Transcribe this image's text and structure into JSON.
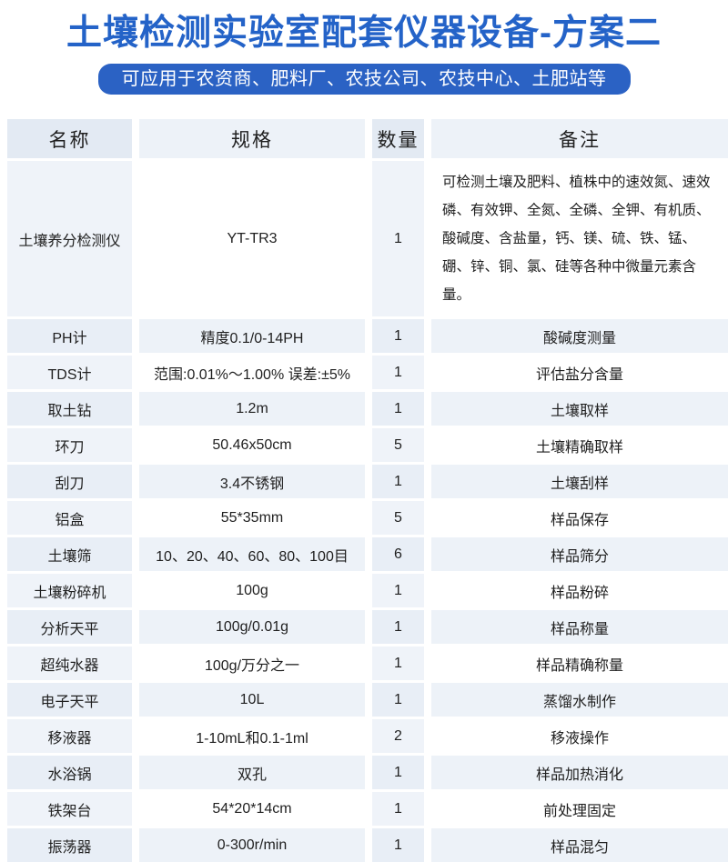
{
  "page": {
    "title": "土壤检测实验室配套仪器设备-方案二",
    "subtitle": "可应用于农资商、肥料厂、农技公司、农技中心、土肥站等"
  },
  "colors": {
    "title_blue": "#2463c8",
    "pill_blue": "#2b62c4",
    "header_tint_dark": "#e3eaf3",
    "header_tint_light": "#edf2f8",
    "row_tint": "#edf2f8",
    "fixed_column_tint": "#eff3f9"
  },
  "table": {
    "headers": [
      "名称",
      "规格",
      "数量",
      "备注"
    ],
    "rows": [
      {
        "name": "土壤养分检测仪",
        "spec": "YT-TR3",
        "qty": "1",
        "note": "可检测土壤及肥料、植株中的速效氮、速效磷、有效钾、全氮、全磷、全钾、有机质、酸碱度、含盐量，钙、镁、硫、铁、锰、硼、锌、铜、氯、硅等各种中微量元素含量。"
      },
      {
        "name": "PH计",
        "spec": "精度0.1/0-14PH",
        "qty": "1",
        "note": "酸碱度测量"
      },
      {
        "name": "TDS计",
        "spec": "范围:0.01%～1.00% 误差:±5%",
        "qty": "1",
        "note": "评估盐分含量"
      },
      {
        "name": "取土钻",
        "spec": "1.2m",
        "qty": "1",
        "note": "土壤取样"
      },
      {
        "name": "环刀",
        "spec": "50.46x50cm",
        "qty": "5",
        "note": "土壤精确取样"
      },
      {
        "name": "刮刀",
        "spec": "3.4不锈钢",
        "qty": "1",
        "note": "土壤刮样"
      },
      {
        "name": "铝盒",
        "spec": "55*35mm",
        "qty": "5",
        "note": "样品保存"
      },
      {
        "name": "土壤筛",
        "spec": "10、20、40、60、80、100目",
        "qty": "6",
        "note": "样品筛分"
      },
      {
        "name": "土壤粉碎机",
        "spec": "100g",
        "qty": "1",
        "note": "样品粉碎"
      },
      {
        "name": "分析天平",
        "spec": "100g/0.01g",
        "qty": "1",
        "note": "样品称量"
      },
      {
        "name": "超纯水器",
        "spec": "100g/万分之一",
        "qty": "1",
        "note": "样品精确称量"
      },
      {
        "name": "电子天平",
        "spec": "10L",
        "qty": "1",
        "note": "蒸馏水制作"
      },
      {
        "name": "移液器",
        "spec": "1-10mL和0.1-1ml",
        "qty": "2",
        "note": "移液操作"
      },
      {
        "name": "水浴锅",
        "spec": "双孔",
        "qty": "1",
        "note": "样品加热消化"
      },
      {
        "name": "铁架台",
        "spec": "54*20*14cm",
        "qty": "1",
        "note": "前处理固定"
      },
      {
        "name": "振荡器",
        "spec": "0-300r/min",
        "qty": "1",
        "note": "样品混匀"
      }
    ]
  }
}
